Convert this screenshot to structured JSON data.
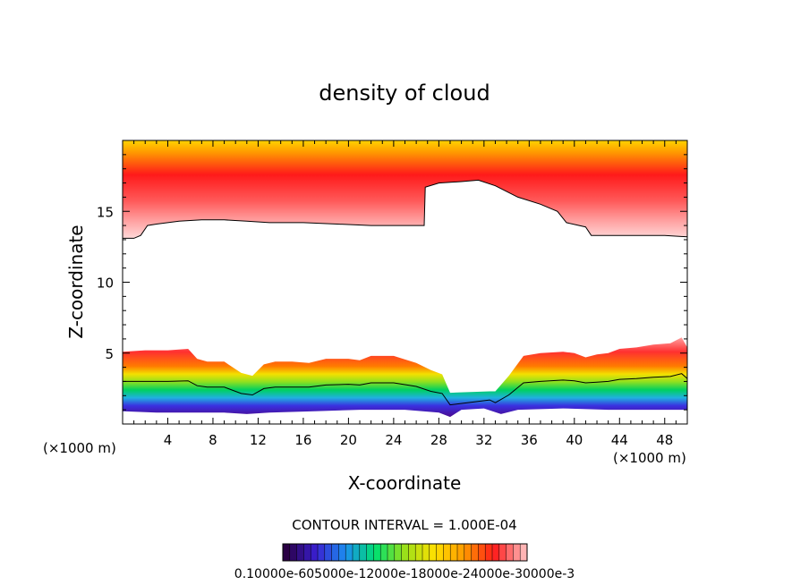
{
  "chart_data": {
    "type": "heatmap",
    "title": "density of cloud",
    "xlabel": "X-coordinate",
    "ylabel": "Z-coordinate",
    "x_unit": "(×1000 m)",
    "y_unit": "(×1000 m)",
    "xlim": [
      0,
      50
    ],
    "ylim": [
      0,
      20
    ],
    "x_ticks": [
      4,
      8,
      12,
      16,
      20,
      24,
      28,
      32,
      36,
      40,
      44,
      48
    ],
    "x_tick_labels": [
      "4",
      "8",
      "12",
      "16",
      "20",
      "24",
      "28",
      "32",
      "36",
      "40",
      "44",
      "48"
    ],
    "y_ticks": [
      5,
      10,
      15
    ],
    "y_tick_labels": [
      "5",
      "10",
      "15"
    ],
    "contour_interval_text": "CONTOUR INTERVAL = 1.000E-04",
    "colorbar_labels_text": "0.10000e-605000e-12000e-18000e-24000e-30000e-3",
    "colorbar_min": 0.0001,
    "colorbar_max": 0.0035,
    "colormap": [
      "#2a0044",
      "#3a1fd0",
      "#1b8ef0",
      "#00e070",
      "#9ae01a",
      "#ffe000",
      "#ff9a00",
      "#ff1a1a",
      "#ffb4b4"
    ],
    "upper_cloud_base_km": [
      [
        0,
        13.1
      ],
      [
        1,
        13.1
      ],
      [
        1.6,
        13.3
      ],
      [
        2.2,
        14.0
      ],
      [
        3,
        14.1
      ],
      [
        5,
        14.3
      ],
      [
        7,
        14.4
      ],
      [
        9,
        14.4
      ],
      [
        11,
        14.3
      ],
      [
        13,
        14.2
      ],
      [
        16,
        14.2
      ],
      [
        19,
        14.1
      ],
      [
        22,
        14.0
      ],
      [
        25,
        14.0
      ],
      [
        26.7,
        14.0
      ],
      [
        26.8,
        16.7
      ],
      [
        28,
        17.0
      ],
      [
        30,
        17.1
      ],
      [
        31.5,
        17.2
      ],
      [
        33,
        16.8
      ],
      [
        35,
        16.0
      ],
      [
        37,
        15.5
      ],
      [
        38.5,
        15.0
      ],
      [
        39.3,
        14.2
      ],
      [
        41,
        13.9
      ],
      [
        41.5,
        13.3
      ],
      [
        43,
        13.3
      ],
      [
        46,
        13.3
      ],
      [
        48,
        13.3
      ],
      [
        50,
        13.2
      ]
    ],
    "low_cloud_top_km": [
      [
        0,
        5.1
      ],
      [
        2,
        5.2
      ],
      [
        4,
        5.2
      ],
      [
        5.8,
        5.3
      ],
      [
        6.6,
        4.6
      ],
      [
        7.5,
        4.4
      ],
      [
        9,
        4.4
      ],
      [
        10.5,
        3.6
      ],
      [
        11.5,
        3.4
      ],
      [
        12.5,
        4.2
      ],
      [
        13.5,
        4.4
      ],
      [
        15,
        4.4
      ],
      [
        16.5,
        4.3
      ],
      [
        18,
        4.6
      ],
      [
        20,
        4.6
      ],
      [
        21,
        4.5
      ],
      [
        22,
        4.8
      ],
      [
        24,
        4.8
      ],
      [
        26,
        4.3
      ],
      [
        27.3,
        3.8
      ],
      [
        28.3,
        3.5
      ],
      [
        29.0,
        2.2
      ],
      [
        32.5,
        2.3
      ],
      [
        33.0,
        2.3
      ],
      [
        34.2,
        3.4
      ],
      [
        35.5,
        4.8
      ],
      [
        37,
        5.0
      ],
      [
        39,
        5.1
      ],
      [
        40,
        5.0
      ],
      [
        41,
        4.7
      ],
      [
        42,
        4.9
      ],
      [
        43,
        5.0
      ],
      [
        44,
        5.3
      ],
      [
        45.5,
        5.4
      ],
      [
        47,
        5.6
      ],
      [
        48.5,
        5.7
      ],
      [
        49.5,
        6.1
      ],
      [
        50,
        5.4
      ]
    ],
    "low_cloud_base_km": [
      [
        0,
        0.9
      ],
      [
        3,
        0.8
      ],
      [
        6,
        0.8
      ],
      [
        9,
        0.8
      ],
      [
        11,
        0.7
      ],
      [
        13,
        0.8
      ],
      [
        17,
        0.9
      ],
      [
        21,
        1.0
      ],
      [
        25,
        1.0
      ],
      [
        28,
        0.8
      ],
      [
        29,
        0.5
      ],
      [
        30,
        1.0
      ],
      [
        32,
        1.1
      ],
      [
        33.5,
        0.7
      ],
      [
        35,
        1.0
      ],
      [
        39,
        1.1
      ],
      [
        43,
        1.0
      ],
      [
        47,
        1.0
      ],
      [
        50,
        1.0
      ]
    ]
  }
}
